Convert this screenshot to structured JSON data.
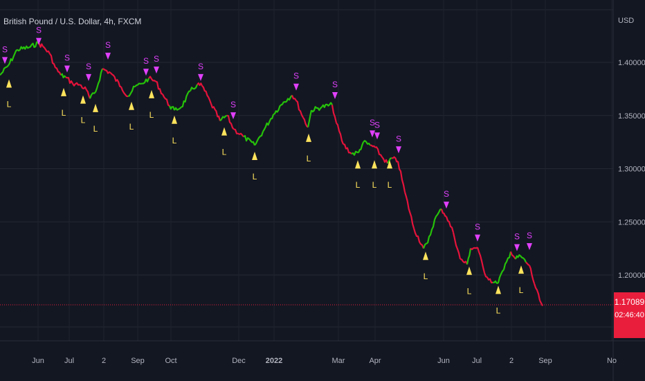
{
  "header": {
    "symbol_title": "British Pound / U.S. Dollar, 4h, FXCM"
  },
  "price_axis": {
    "currency": "USD",
    "last_price": "1.17089",
    "countdown": "02:46:40"
  },
  "colors": {
    "bull": "#26c20a",
    "bear": "#e5133b",
    "sell_marker": "#e040fb",
    "buy_marker": "#ffe35c",
    "last_line": "#e91e3c"
  },
  "chart_data": {
    "type": "line",
    "y_ticks": [
      "1.40000",
      "1.35000",
      "1.30000",
      "1.25000",
      "1.20000"
    ],
    "x_ticks": [
      "Jun",
      "Jul",
      "2",
      "Sep",
      "Oct",
      "Dec",
      "2022",
      "Mar",
      "Apr",
      "Jun",
      "Jul",
      "2",
      "Sep",
      "No"
    ],
    "ylim": [
      1.14,
      1.45
    ],
    "series": [
      {
        "values": [
          [
            0,
            1.388,
            "g"
          ],
          [
            12,
            1.397,
            "g"
          ],
          [
            25,
            1.412,
            "g"
          ],
          [
            42,
            1.414,
            "g"
          ],
          [
            55,
            1.418,
            "g"
          ],
          [
            62,
            1.415,
            "r"
          ],
          [
            72,
            1.408,
            "r"
          ],
          [
            80,
            1.395,
            "r"
          ],
          [
            88,
            1.388,
            "r"
          ],
          [
            95,
            1.386,
            "g"
          ],
          [
            105,
            1.38,
            "r"
          ],
          [
            115,
            1.379,
            "r"
          ],
          [
            125,
            1.374,
            "r"
          ],
          [
            130,
            1.366,
            "r"
          ],
          [
            138,
            1.372,
            "g"
          ],
          [
            148,
            1.394,
            "g"
          ],
          [
            160,
            1.39,
            "r"
          ],
          [
            175,
            1.377,
            "r"
          ],
          [
            185,
            1.368,
            "r"
          ],
          [
            195,
            1.377,
            "g"
          ],
          [
            205,
            1.38,
            "g"
          ],
          [
            215,
            1.385,
            "g"
          ],
          [
            225,
            1.382,
            "r"
          ],
          [
            235,
            1.37,
            "r"
          ],
          [
            245,
            1.359,
            "r"
          ],
          [
            252,
            1.355,
            "g"
          ],
          [
            262,
            1.358,
            "g"
          ],
          [
            275,
            1.373,
            "g"
          ],
          [
            285,
            1.379,
            "g"
          ],
          [
            292,
            1.378,
            "r"
          ],
          [
            305,
            1.361,
            "r"
          ],
          [
            318,
            1.345,
            "r"
          ],
          [
            328,
            1.35,
            "g"
          ],
          [
            338,
            1.337,
            "r"
          ],
          [
            352,
            1.33,
            "r"
          ],
          [
            368,
            1.322,
            "g"
          ],
          [
            380,
            1.335,
            "g"
          ],
          [
            395,
            1.351,
            "g"
          ],
          [
            410,
            1.363,
            "g"
          ],
          [
            422,
            1.369,
            "g"
          ],
          [
            428,
            1.364,
            "r"
          ],
          [
            438,
            1.348,
            "r"
          ],
          [
            445,
            1.339,
            "r"
          ],
          [
            450,
            1.355,
            "g"
          ],
          [
            465,
            1.358,
            "g"
          ],
          [
            480,
            1.36,
            "g"
          ],
          [
            486,
            1.343,
            "r"
          ],
          [
            496,
            1.323,
            "r"
          ],
          [
            508,
            1.314,
            "r"
          ],
          [
            518,
            1.315,
            "g"
          ],
          [
            525,
            1.325,
            "g"
          ],
          [
            535,
            1.322,
            "g"
          ],
          [
            542,
            1.32,
            "r"
          ],
          [
            552,
            1.311,
            "r"
          ],
          [
            560,
            1.305,
            "r"
          ],
          [
            566,
            1.31,
            "g"
          ],
          [
            575,
            1.307,
            "r"
          ],
          [
            585,
            1.278,
            "r"
          ],
          [
            598,
            1.244,
            "r"
          ],
          [
            612,
            1.225,
            "r"
          ],
          [
            618,
            1.23,
            "g"
          ],
          [
            628,
            1.252,
            "g"
          ],
          [
            638,
            1.262,
            "g"
          ],
          [
            645,
            1.255,
            "r"
          ],
          [
            655,
            1.24,
            "r"
          ],
          [
            665,
            1.215,
            "r"
          ],
          [
            675,
            1.21,
            "r"
          ],
          [
            680,
            1.225,
            "g"
          ],
          [
            690,
            1.226,
            "r"
          ],
          [
            700,
            1.202,
            "r"
          ],
          [
            712,
            1.193,
            "r"
          ],
          [
            718,
            1.192,
            "g"
          ],
          [
            728,
            1.205,
            "g"
          ],
          [
            738,
            1.222,
            "g"
          ],
          [
            745,
            1.215,
            "r"
          ],
          [
            752,
            1.218,
            "g"
          ],
          [
            760,
            1.212,
            "g"
          ],
          [
            765,
            1.209,
            "r"
          ],
          [
            772,
            1.192,
            "r"
          ],
          [
            780,
            1.176,
            "r"
          ],
          [
            784,
            1.171,
            "r"
          ]
        ]
      }
    ],
    "signals": [
      {
        "type": "S",
        "x": 7,
        "price": 1.405
      },
      {
        "type": "L",
        "x": 13,
        "price": 1.384
      },
      {
        "type": "S",
        "x": 56,
        "price": 1.423
      },
      {
        "type": "S",
        "x": 97,
        "price": 1.397
      },
      {
        "type": "L",
        "x": 92,
        "price": 1.376
      },
      {
        "type": "L",
        "x": 120,
        "price": 1.369
      },
      {
        "type": "S",
        "x": 128,
        "price": 1.389
      },
      {
        "type": "L",
        "x": 138,
        "price": 1.361
      },
      {
        "type": "S",
        "x": 156,
        "price": 1.409
      },
      {
        "type": "L",
        "x": 190,
        "price": 1.363
      },
      {
        "type": "S",
        "x": 211,
        "price": 1.394
      },
      {
        "type": "L",
        "x": 219,
        "price": 1.374
      },
      {
        "type": "S",
        "x": 226,
        "price": 1.396
      },
      {
        "type": "L",
        "x": 252,
        "price": 1.35
      },
      {
        "type": "S",
        "x": 290,
        "price": 1.389
      },
      {
        "type": "L",
        "x": 324,
        "price": 1.339
      },
      {
        "type": "S",
        "x": 337,
        "price": 1.353
      },
      {
        "type": "L",
        "x": 368,
        "price": 1.316
      },
      {
        "type": "S",
        "x": 428,
        "price": 1.38
      },
      {
        "type": "L",
        "x": 446,
        "price": 1.333
      },
      {
        "type": "S",
        "x": 484,
        "price": 1.372
      },
      {
        "type": "L",
        "x": 517,
        "price": 1.308
      },
      {
        "type": "S",
        "x": 538,
        "price": 1.336
      },
      {
        "type": "S",
        "x": 545,
        "price": 1.334
      },
      {
        "type": "L",
        "x": 541,
        "price": 1.308
      },
      {
        "type": "L",
        "x": 563,
        "price": 1.308
      },
      {
        "type": "S",
        "x": 576,
        "price": 1.321
      },
      {
        "type": "S",
        "x": 645,
        "price": 1.269
      },
      {
        "type": "L",
        "x": 615,
        "price": 1.222
      },
      {
        "type": "S",
        "x": 690,
        "price": 1.238
      },
      {
        "type": "L",
        "x": 678,
        "price": 1.208
      },
      {
        "type": "L",
        "x": 720,
        "price": 1.19
      },
      {
        "type": "S",
        "x": 747,
        "price": 1.229
      },
      {
        "type": "L",
        "x": 753,
        "price": 1.209
      },
      {
        "type": "S",
        "x": 765,
        "price": 1.23
      }
    ]
  }
}
